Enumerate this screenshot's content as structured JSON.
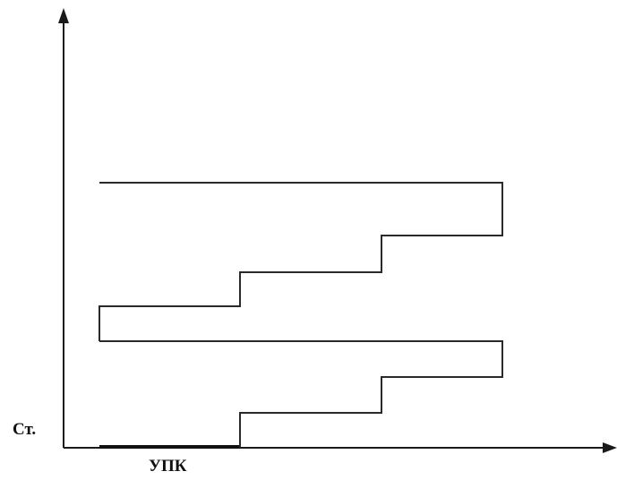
{
  "labels": {
    "y_axis": "Ст.",
    "x_axis": "УПК"
  },
  "colors": {
    "line": "#2a2a2a",
    "axis": "#1a1a1a",
    "background": "#ffffff"
  }
}
